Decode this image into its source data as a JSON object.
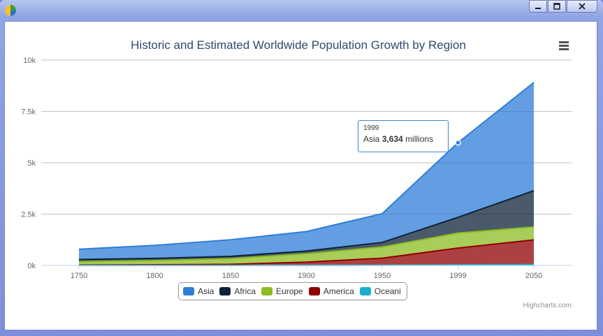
{
  "window": {
    "icon": "pie-chart-icon"
  },
  "window_buttons": {
    "minimize_icon": "minimize-icon",
    "maximize_icon": "maximize-icon",
    "close_icon": "close-icon"
  },
  "menu": {
    "icon": "menu-icon"
  },
  "tooltip": {
    "x": "1999",
    "series": "Asia",
    "value": "3,634",
    "unit": "millions"
  },
  "credits": "Highcharts.com",
  "chart_data": {
    "type": "area",
    "stacked": true,
    "title": "Historic and Estimated Worldwide Population Growth by Region",
    "categories": [
      "1750",
      "1800",
      "1850",
      "1900",
      "1950",
      "1999",
      "2050"
    ],
    "ylim": [
      0,
      10000
    ],
    "ytick_labels": [
      "0k",
      "2.5k",
      "5k",
      "7.5k",
      "10k"
    ],
    "ytick_values": [
      0,
      2500,
      5000,
      7500,
      10000
    ],
    "grid": true,
    "legend_position": "bottom-center",
    "series": [
      {
        "name": "Asia",
        "color": "#2f7ed8",
        "values": [
          502,
          635,
          809,
          947,
          1402,
          3634,
          5268
        ]
      },
      {
        "name": "Africa",
        "color": "#0d233a",
        "values": [
          106,
          107,
          111,
          133,
          221,
          767,
          1766
        ]
      },
      {
        "name": "Europe",
        "color": "#8bbc21",
        "values": [
          163,
          203,
          276,
          408,
          547,
          729,
          628
        ]
      },
      {
        "name": "America",
        "color": "#910000",
        "values": [
          18,
          31,
          54,
          156,
          339,
          818,
          1201
        ]
      },
      {
        "name": "Oceani",
        "color": "#1aadce",
        "values": [
          2,
          2,
          2,
          6,
          13,
          30,
          46
        ]
      }
    ]
  }
}
